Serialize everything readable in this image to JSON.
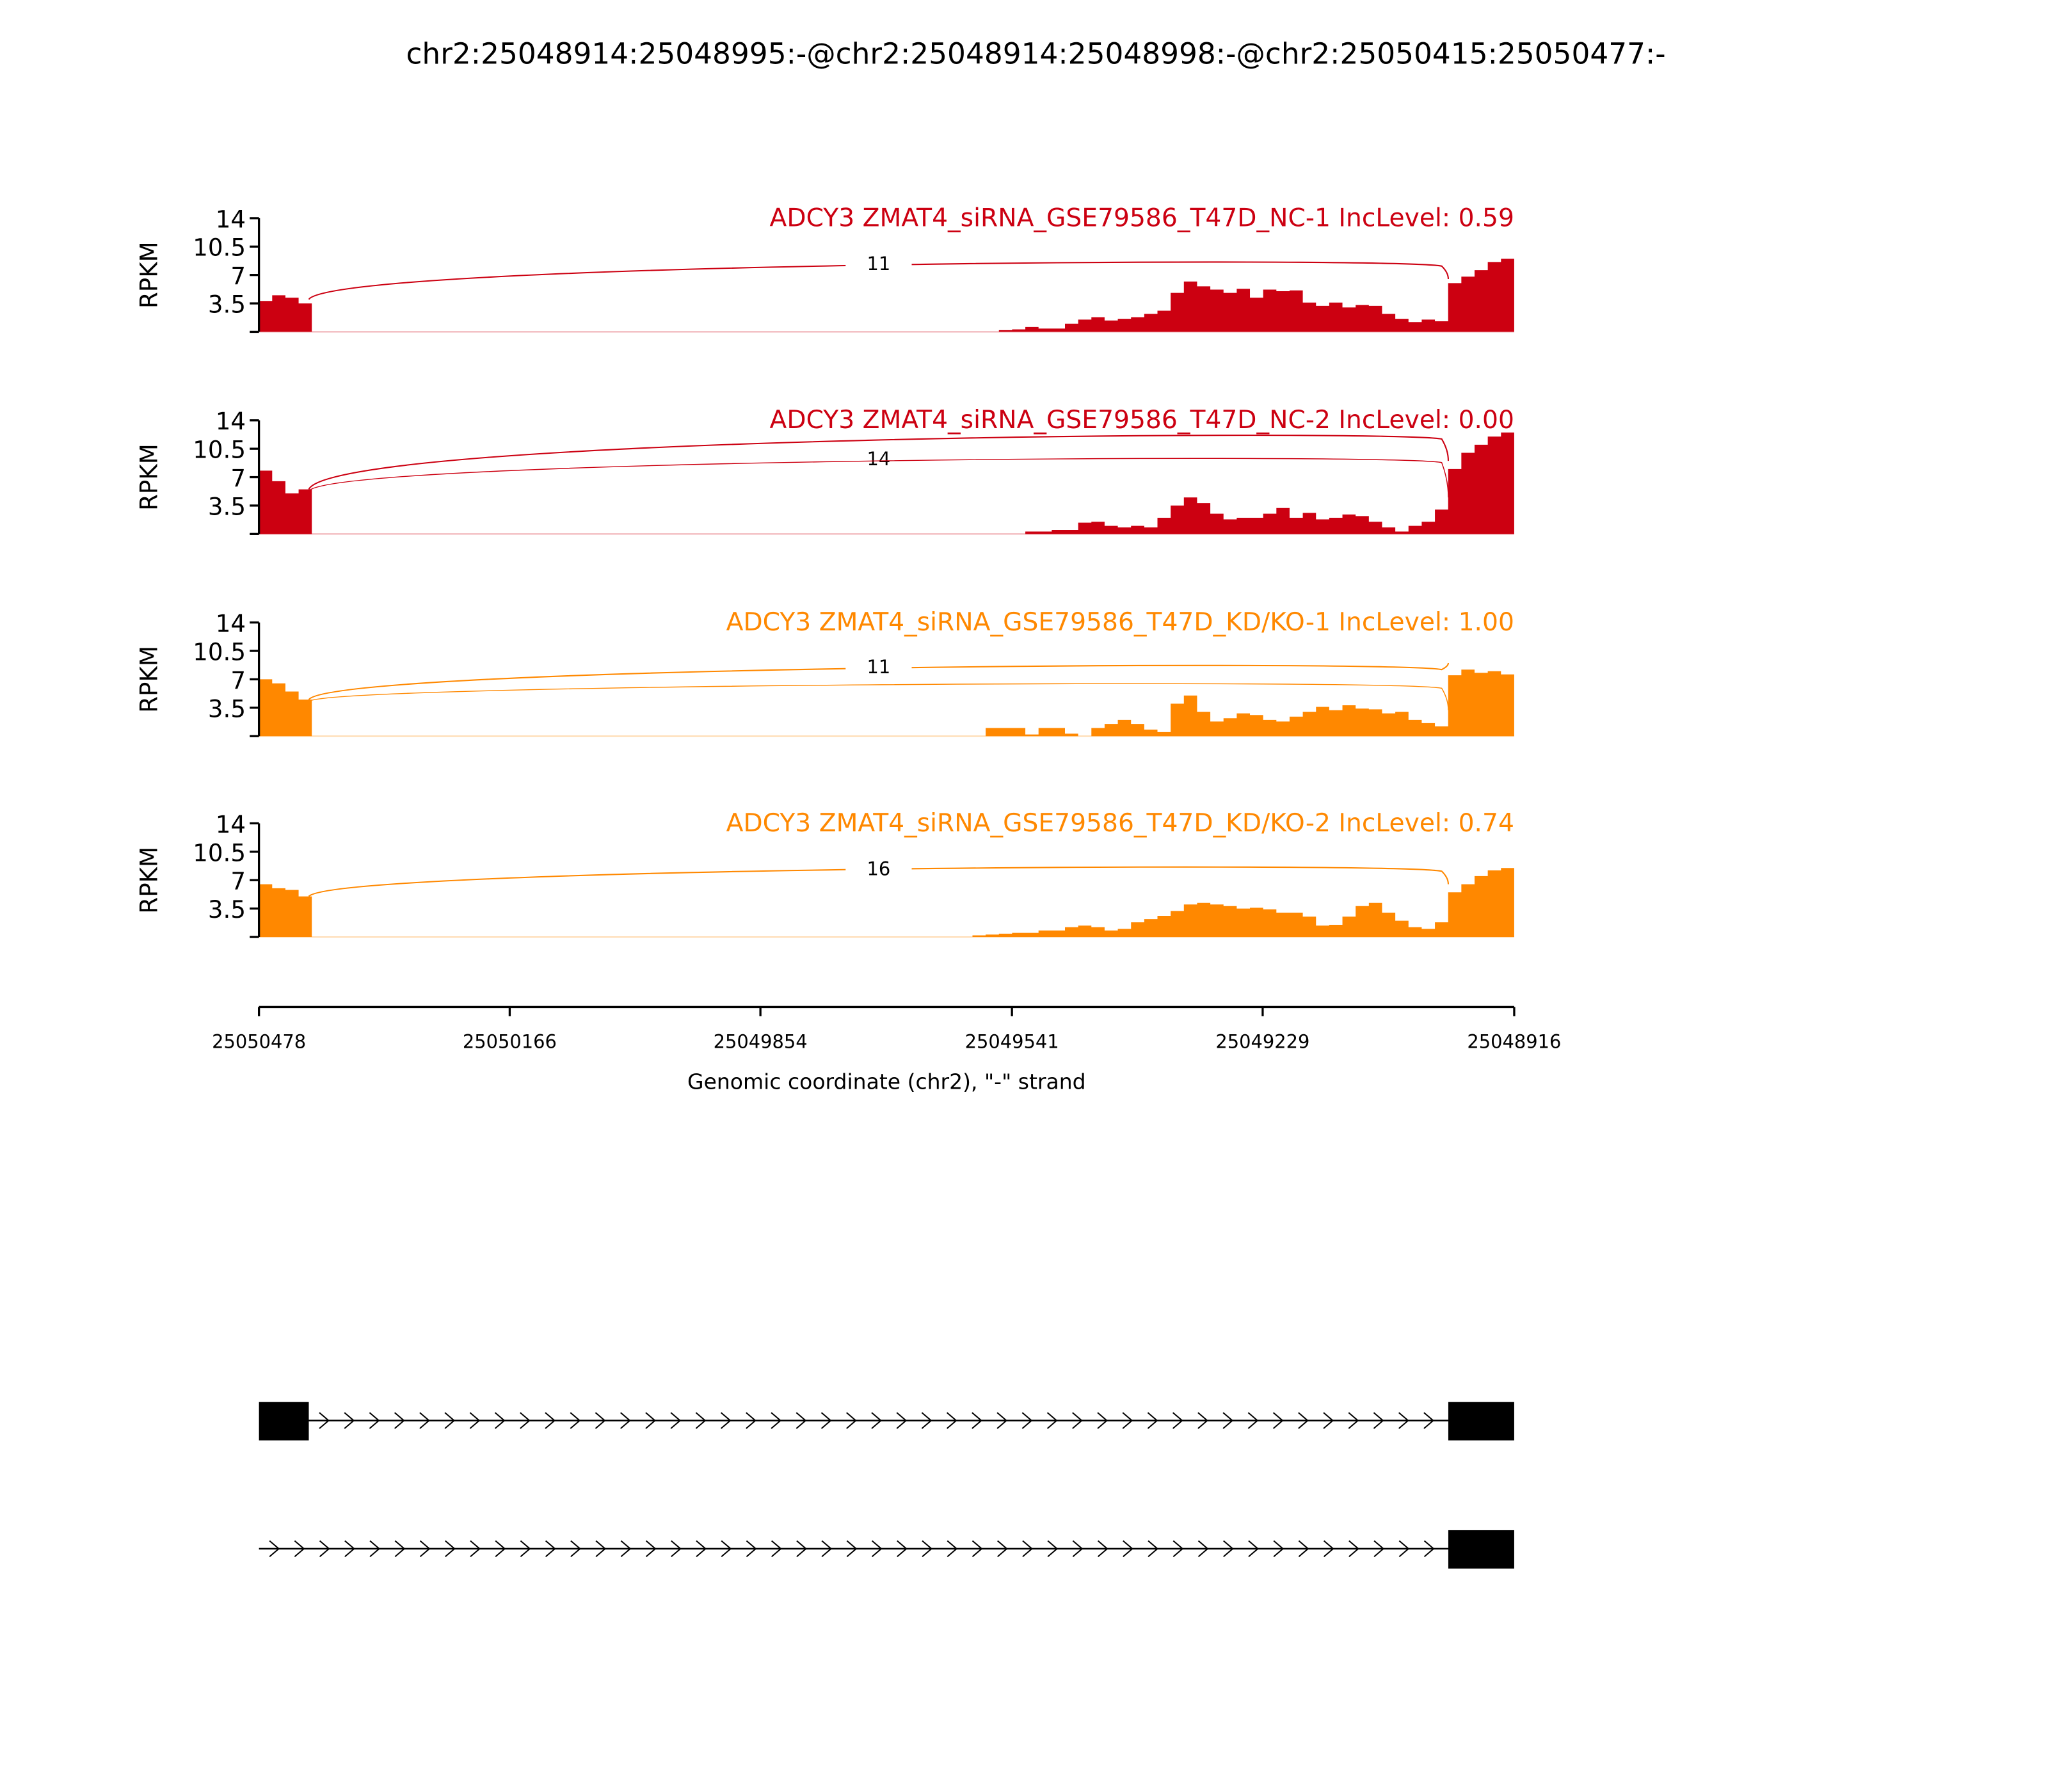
{
  "chart_data": {
    "type": "area",
    "title": "chr2:25048914:25048995:-@chr2:25048914:25048998:-@chr2:25050415:25050477:-",
    "xlabel": "Genomic coordinate (chr2), \"-\" strand",
    "ylabel": "RPKM",
    "xlim": [
      25050478,
      25048916
    ],
    "x_ticks": [
      "25050478",
      "25050166",
      "25049854",
      "25049541",
      "25049229",
      "25048916"
    ],
    "ylim": [
      0,
      14
    ],
    "y_ticks": [
      "14",
      "10.5",
      "7",
      "3.5"
    ],
    "bin_count": 95,
    "exon_bounds": {
      "exon1_end": 25050416,
      "exon2_start": 25048998
    },
    "panels": [
      {
        "label": "ADCY3 ZMAT4_siRNA_GSE79586_T47D_NC-1 IncLevel: 0.59",
        "color": "#cc0011",
        "junctions": [
          {
            "count": "11",
            "type": "skip",
            "peak": 8.6
          }
        ],
        "coverage": [
          3.8,
          4.5,
          4.2,
          3.5,
          0,
          0,
          0,
          0,
          0,
          0,
          0,
          0,
          0,
          0,
          0,
          0,
          0,
          0,
          0,
          0,
          0,
          0,
          0,
          0,
          0,
          0,
          0,
          0,
          0,
          0,
          0,
          0,
          0,
          0,
          0,
          0,
          0,
          0,
          0,
          0,
          0,
          0,
          0,
          0,
          0,
          0,
          0,
          0,
          0,
          0,
          0,
          0,
          0,
          0,
          0,
          0,
          0.2,
          0.3,
          0.6,
          0.4,
          0.4,
          1.0,
          1.5,
          1.8,
          1.4,
          1.6,
          1.8,
          2.2,
          2.6,
          4.8,
          6.2,
          5.6,
          5.2,
          4.8,
          5.3,
          4.2,
          5.2,
          5.0,
          5.1,
          3.6,
          3.2,
          3.6,
          3.0,
          3.3,
          3.2,
          2.2,
          1.6,
          1.2,
          1.5,
          1.3,
          6.0,
          6.8,
          7.6,
          8.6,
          9.0
        ]
      },
      {
        "label": "ADCY3 ZMAT4_siRNA_GSE79586_T47D_NC-2 IncLevel: 0.00",
        "color": "#cc0011",
        "junctions": [
          {
            "count": "14",
            "type": "skip",
            "peak": 12.2
          },
          {
            "count": "",
            "type": "inclusion",
            "peak": 9.3
          }
        ],
        "coverage": [
          7.8,
          6.5,
          5.0,
          5.5,
          0,
          0,
          0,
          0,
          0,
          0,
          0,
          0,
          0,
          0,
          0,
          0,
          0,
          0,
          0,
          0,
          0,
          0,
          0,
          0,
          0,
          0,
          0,
          0,
          0,
          0,
          0,
          0,
          0,
          0,
          0,
          0,
          0,
          0,
          0,
          0,
          0,
          0,
          0,
          0,
          0,
          0,
          0,
          0,
          0,
          0,
          0,
          0,
          0,
          0,
          0,
          0,
          0,
          0,
          0.3,
          0.3,
          0.5,
          0.5,
          1.4,
          1.5,
          1.0,
          0.8,
          1.0,
          0.8,
          2.0,
          3.5,
          4.5,
          3.8,
          2.5,
          1.8,
          2.0,
          2.0,
          2.5,
          3.2,
          2.0,
          2.6,
          1.8,
          2.0,
          2.4,
          2.2,
          1.5,
          0.8,
          0.3,
          1.0,
          1.5,
          3.0,
          8.0,
          10.0,
          11.0,
          12.0,
          12.5
        ]
      },
      {
        "label": "ADCY3 ZMAT4_siRNA_GSE79586_T47D_KD/KO-1 IncLevel: 1.00",
        "color": "#ff8800",
        "junctions": [
          {
            "count": "11",
            "type": "skip",
            "peak": 8.7
          },
          {
            "count": "",
            "type": "inclusion",
            "peak": 6.4
          }
        ],
        "coverage": [
          7.0,
          6.5,
          5.5,
          4.5,
          0,
          0,
          0,
          0,
          0,
          0,
          0,
          0,
          0,
          0,
          0,
          0,
          0,
          0,
          0,
          0,
          0,
          0,
          0,
          0,
          0,
          0,
          0,
          0,
          0,
          0,
          0,
          0,
          0,
          0,
          0,
          0,
          0,
          0,
          0,
          0,
          0,
          0,
          0,
          0,
          0,
          0,
          0,
          0,
          0,
          0,
          0,
          0,
          0,
          0,
          0,
          1.0,
          1.0,
          1.0,
          0.2,
          1.0,
          1.0,
          0.3,
          0,
          1.0,
          1.5,
          2.0,
          1.5,
          0.8,
          0.5,
          4.0,
          5.0,
          3.0,
          1.8,
          2.2,
          2.8,
          2.6,
          2.0,
          1.8,
          2.4,
          3.0,
          3.6,
          3.2,
          3.8,
          3.4,
          3.3,
          2.8,
          3.0,
          2.0,
          1.6,
          1.2,
          7.5,
          8.2,
          7.8,
          8.0,
          7.6
        ]
      },
      {
        "label": "ADCY3 ZMAT4_siRNA_GSE79586_T47D_KD/KO-2 IncLevel: 0.74",
        "color": "#ff8800",
        "junctions": [
          {
            "count": "16",
            "type": "skip",
            "peak": 8.6
          }
        ],
        "coverage": [
          6.5,
          6.0,
          5.8,
          5.0,
          0,
          0,
          0,
          0,
          0,
          0,
          0,
          0,
          0,
          0,
          0,
          0,
          0,
          0,
          0,
          0,
          0,
          0,
          0,
          0,
          0,
          0,
          0,
          0,
          0,
          0,
          0,
          0,
          0,
          0,
          0,
          0,
          0,
          0,
          0,
          0,
          0,
          0,
          0,
          0,
          0,
          0,
          0,
          0,
          0,
          0,
          0,
          0,
          0,
          0,
          0.2,
          0.3,
          0.4,
          0.5,
          0.5,
          0.8,
          0.8,
          1.2,
          1.4,
          1.2,
          0.8,
          1.0,
          1.8,
          2.2,
          2.6,
          3.2,
          4.0,
          4.2,
          4.0,
          3.8,
          3.5,
          3.6,
          3.4,
          3.0,
          3.0,
          2.5,
          1.4,
          1.5,
          2.5,
          3.8,
          4.2,
          3.0,
          2.0,
          1.2,
          1.0,
          1.8,
          5.5,
          6.5,
          7.5,
          8.2,
          8.5
        ]
      }
    ],
    "isoforms": [
      {
        "exons": [
          "exon1",
          "exon2"
        ]
      },
      {
        "exons": [
          "exon2"
        ]
      }
    ]
  }
}
